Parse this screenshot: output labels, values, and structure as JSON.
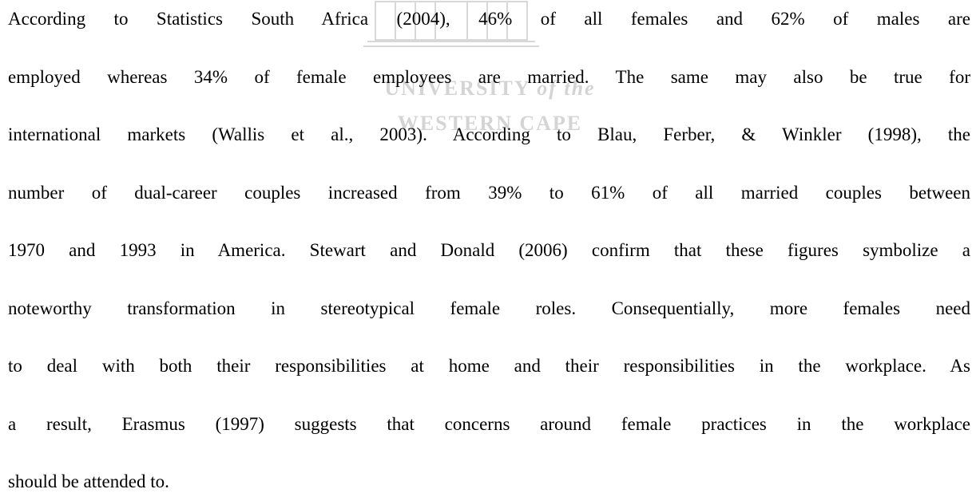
{
  "watermark": {
    "line1": "UNIVERSITY",
    "line1_suffix": "of the",
    "line2": "WESTERN CAPE"
  },
  "paragraph": {
    "lines": [
      "According to Statistics South Africa (2004), 46% of all females and 62% of males are",
      "employed whereas 34% of female employees are married. The same may also be true for",
      "international markets (Wallis et al., 2003). According to Blau, Ferber, & Winkler (1998), the",
      "number of dual-career couples increased from 39% to 61% of all married couples between",
      "1970 and 1993 in America. Stewart and Donald (2006) confirm that these figures symbolize a",
      "noteworthy transformation in stereotypical female roles. Consequentially, more females need",
      "to deal with both their responsibilities at home and their responsibilities in the workplace. As",
      "a result, Erasmus (1997) suggests that concerns around female practices in the workplace",
      "should be attended to."
    ]
  }
}
